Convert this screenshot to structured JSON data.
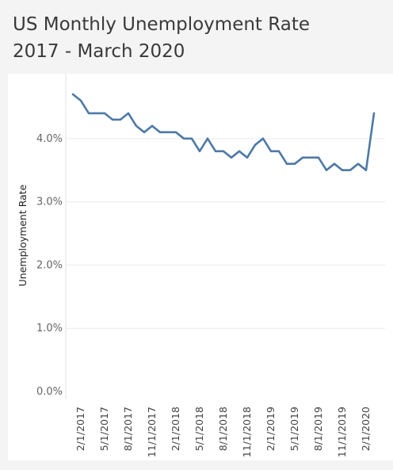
{
  "title_line1": "US Monthly Unemployment Rate",
  "title_line2": "2017 - March 2020",
  "chart_data": {
    "type": "line",
    "title": "US Monthly Unemployment Rate 2017 - March 2020",
    "ylabel": "Unemployment Rate",
    "xlabel": "",
    "ylim": [
      0,
      4.9
    ],
    "yticks": [
      "0.0%",
      "1.0%",
      "2.0%",
      "3.0%",
      "4.0%"
    ],
    "ytick_values": [
      0,
      1,
      2,
      3,
      4
    ],
    "xtick_labels": [
      "2/1/2017",
      "5/1/2017",
      "8/1/2017",
      "11/1/2017",
      "2/1/2018",
      "5/1/2018",
      "8/1/2018",
      "11/1/2018",
      "2/1/2019",
      "5/1/2019",
      "8/1/2019",
      "11/1/2019",
      "2/1/2020"
    ],
    "xtick_month_index": [
      1,
      4,
      7,
      10,
      13,
      16,
      19,
      22,
      25,
      28,
      31,
      34,
      37
    ],
    "grid": true,
    "line_color": "#4e79a7",
    "series": [
      {
        "x": [
          "1/1/2017",
          "2/1/2017",
          "3/1/2017",
          "4/1/2017",
          "5/1/2017",
          "6/1/2017",
          "7/1/2017",
          "8/1/2017",
          "9/1/2017",
          "10/1/2017",
          "11/1/2017",
          "12/1/2017",
          "1/1/2018",
          "2/1/2018",
          "3/1/2018",
          "4/1/2018",
          "5/1/2018",
          "6/1/2018",
          "7/1/2018",
          "8/1/2018",
          "9/1/2018",
          "10/1/2018",
          "11/1/2018",
          "12/1/2018",
          "1/1/2019",
          "2/1/2019",
          "3/1/2019",
          "4/1/2019",
          "5/1/2019",
          "6/1/2019",
          "7/1/2019",
          "8/1/2019",
          "9/1/2019",
          "10/1/2019",
          "11/1/2019",
          "12/1/2019",
          "1/1/2020",
          "2/1/2020",
          "3/1/2020"
        ],
        "values": [
          4.7,
          4.6,
          4.4,
          4.4,
          4.4,
          4.3,
          4.3,
          4.4,
          4.2,
          4.1,
          4.2,
          4.1,
          4.1,
          4.1,
          4.0,
          4.0,
          3.8,
          4.0,
          3.8,
          3.8,
          3.7,
          3.8,
          3.7,
          3.9,
          4.0,
          3.8,
          3.8,
          3.6,
          3.6,
          3.7,
          3.7,
          3.7,
          3.5,
          3.6,
          3.5,
          3.5,
          3.6,
          3.5,
          4.4
        ]
      }
    ]
  }
}
